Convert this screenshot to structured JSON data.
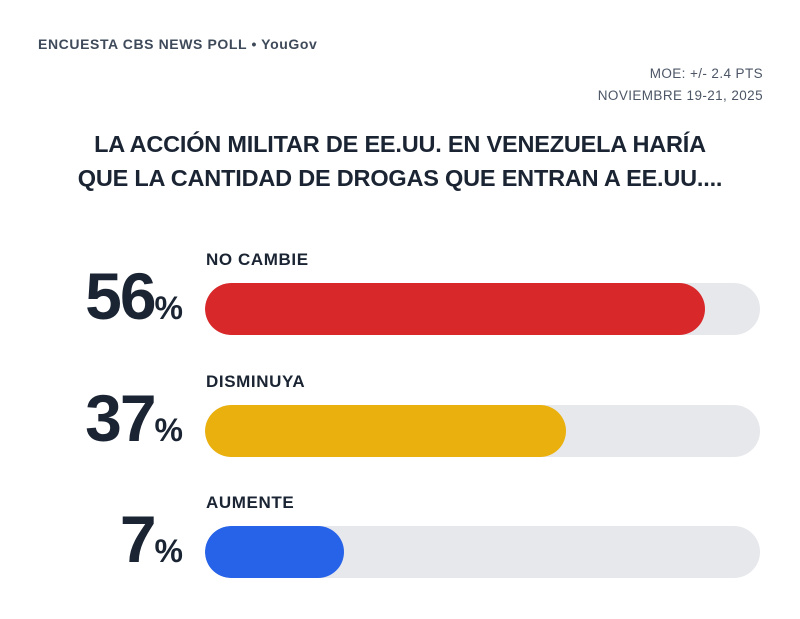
{
  "header": {
    "brand": "ENCUESTA CBS NEWS POLL • YouGov"
  },
  "meta": {
    "moe": "MOE: +/- 2.4 PTS",
    "date": "NOVIEMBRE 19-21, 2025"
  },
  "title": {
    "line1": "LA ACCIÓN MILITAR DE EE.UU. EN VENEZUELA HARÍA",
    "line2": "QUE LA CANTIDAD DE DROGAS QUE ENTRAN A EE.UU...."
  },
  "rows": [
    {
      "label": "NO CAMBIE",
      "value": "56",
      "suffix": "%"
    },
    {
      "label": "DISMINUYA",
      "value": "37",
      "suffix": "%"
    },
    {
      "label": "AUMENTE",
      "value": "7",
      "suffix": "%"
    }
  ],
  "chart_data": {
    "type": "bar",
    "title": "LA ACCIÓN MILITAR DE EE.UU. EN VENEZUELA HARÍA QUE LA CANTIDAD DE DROGAS QUE ENTRAN A EE.UU....",
    "categories": [
      "NO CAMBIE",
      "DISMINUYA",
      "AUMENTE"
    ],
    "values": [
      56,
      37,
      7
    ],
    "unit": "%",
    "colors": [
      "#d9282a",
      "#eab00d",
      "#2763e8"
    ],
    "track_color": "#e7e8ec",
    "fill_pct": [
      90,
      65,
      25
    ],
    "orientation": "horizontal",
    "grid": false,
    "legend": false,
    "source": "ENCUESTA CBS NEWS POLL • YouGov",
    "margin_of_error": "+/- 2.4 PTS",
    "field_dates": "NOVIEMBRE 19-21, 2025"
  }
}
